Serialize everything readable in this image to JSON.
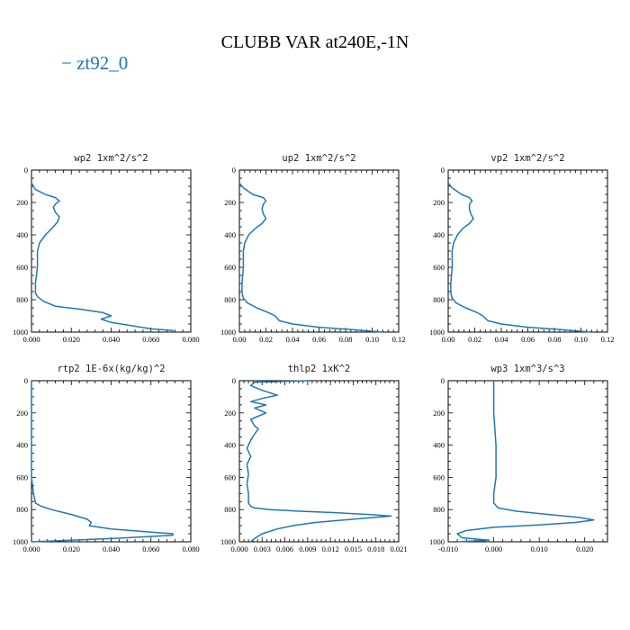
{
  "title": "CLUBB VAR at240E,-1N",
  "legend": {
    "label": "zt92_0",
    "color": "#1f77b4"
  },
  "chart_data": [
    {
      "type": "line",
      "title": "wp2  1xm^2/s^2",
      "xlim": [
        0,
        0.08
      ],
      "xticks": [
        0,
        0.02,
        0.04,
        0.06,
        0.08
      ],
      "xticklabels": [
        "0.000",
        "0.020",
        "0.040",
        "0.060",
        "0.080"
      ],
      "ylim": [
        1000,
        0
      ],
      "yticks": [
        0,
        200,
        400,
        600,
        800,
        1000
      ],
      "yticklabels": [
        "0",
        "200",
        "400",
        "600",
        "800",
        "1000"
      ],
      "x": [
        0.0,
        0.002,
        0.007,
        0.012,
        0.014,
        0.012,
        0.011,
        0.012,
        0.014,
        0.013,
        0.011,
        0.007,
        0.004,
        0.003,
        0.003,
        0.002,
        0.002,
        0.002,
        0.003,
        0.006,
        0.012,
        0.025,
        0.036,
        0.04,
        0.035,
        0.04,
        0.06,
        0.071,
        0.071
      ],
      "y": [
        80,
        120,
        150,
        170,
        190,
        210,
        230,
        260,
        290,
        320,
        350,
        400,
        450,
        500,
        600,
        700,
        740,
        760,
        780,
        810,
        840,
        860,
        880,
        900,
        920,
        940,
        980,
        990,
        1000
      ]
    },
    {
      "type": "line",
      "title": "up2  1xm^2/s^2",
      "xlim": [
        0,
        0.12
      ],
      "xticks": [
        0,
        0.02,
        0.04,
        0.06,
        0.08,
        0.1,
        0.12
      ],
      "xticklabels": [
        "0.00",
        "0.02",
        "0.04",
        "0.06",
        "0.08",
        "0.10",
        "0.12"
      ],
      "ylim": [
        1000,
        0
      ],
      "yticks": [
        0,
        200,
        400,
        600,
        800,
        1000
      ],
      "yticklabels": [
        "0",
        "200",
        "400",
        "600",
        "800",
        "1000"
      ],
      "x": [
        0.0,
        0.003,
        0.01,
        0.018,
        0.02,
        0.018,
        0.017,
        0.018,
        0.02,
        0.017,
        0.012,
        0.007,
        0.004,
        0.003,
        0.003,
        0.002,
        0.002,
        0.003,
        0.006,
        0.013,
        0.022,
        0.027,
        0.03,
        0.04,
        0.06,
        0.085,
        0.1,
        0.108
      ],
      "y": [
        80,
        110,
        150,
        170,
        190,
        210,
        240,
        270,
        300,
        330,
        360,
        400,
        450,
        500,
        600,
        700,
        760,
        790,
        820,
        850,
        880,
        900,
        930,
        950,
        970,
        985,
        995,
        1000
      ]
    },
    {
      "type": "line",
      "title": "vp2  1xm^2/s^2",
      "xlim": [
        0,
        0.12
      ],
      "xticks": [
        0,
        0.02,
        0.04,
        0.06,
        0.08,
        0.1,
        0.12
      ],
      "xticklabels": [
        "0.00",
        "0.02",
        "0.04",
        "0.06",
        "0.08",
        "0.10",
        "0.12"
      ],
      "ylim": [
        1000,
        0
      ],
      "yticks": [
        0,
        200,
        400,
        600,
        800,
        1000
      ],
      "yticklabels": [
        "0",
        "200",
        "400",
        "600",
        "800",
        "1000"
      ],
      "x": [
        0.0,
        0.003,
        0.01,
        0.016,
        0.018,
        0.016,
        0.016,
        0.017,
        0.019,
        0.016,
        0.011,
        0.007,
        0.004,
        0.003,
        0.003,
        0.002,
        0.002,
        0.003,
        0.006,
        0.013,
        0.022,
        0.026,
        0.03,
        0.04,
        0.06,
        0.085,
        0.1,
        0.108
      ],
      "y": [
        80,
        110,
        150,
        170,
        190,
        210,
        240,
        270,
        300,
        330,
        360,
        400,
        450,
        500,
        600,
        700,
        760,
        790,
        820,
        850,
        880,
        900,
        930,
        950,
        970,
        985,
        995,
        1000
      ]
    },
    {
      "type": "line",
      "title": "rtp2  1E-6x(kg/kg)^2",
      "xlim": [
        0,
        0.08
      ],
      "xticks": [
        0,
        0.02,
        0.04,
        0.06,
        0.08
      ],
      "xticklabels": [
        "0.000",
        "0.020",
        "0.040",
        "0.060",
        "0.080"
      ],
      "ylim": [
        1000,
        0
      ],
      "yticks": [
        0,
        200,
        400,
        600,
        800,
        1000
      ],
      "yticklabels": [
        "0",
        "200",
        "400",
        "600",
        "800",
        "1000"
      ],
      "x": [
        0.0,
        0.0,
        0.0,
        0.0,
        0.001,
        0.002,
        0.005,
        0.01,
        0.02,
        0.028,
        0.03,
        0.029,
        0.04,
        0.06,
        0.071,
        0.071,
        0.04,
        0.01,
        0.0
      ],
      "y": [
        0,
        200,
        400,
        600,
        700,
        760,
        780,
        800,
        830,
        860,
        880,
        900,
        920,
        940,
        950,
        960,
        980,
        995,
        1000
      ]
    },
    {
      "type": "line",
      "title": "thlp2  1xK^2",
      "xlim": [
        0,
        0.021
      ],
      "xticks": [
        0,
        0.003,
        0.006,
        0.009,
        0.012,
        0.015,
        0.018,
        0.021
      ],
      "xticklabels": [
        "0.000",
        "0.003",
        "0.006",
        "0.009",
        "0.012",
        "0.015",
        "0.018",
        "0.021"
      ],
      "ylim": [
        1000,
        0
      ],
      "yticks": [
        0,
        200,
        400,
        600,
        800,
        1000
      ],
      "yticklabels": [
        "0",
        "200",
        "400",
        "600",
        "800",
        "1000"
      ],
      "x": [
        0.009,
        0.002,
        0.0015,
        0.003,
        0.005,
        0.003,
        0.0015,
        0.0035,
        0.002,
        0.0035,
        0.0015,
        0.002,
        0.0025,
        0.002,
        0.0015,
        0.001,
        0.0015,
        0.001,
        0.0012,
        0.001,
        0.0012,
        0.0012,
        0.0015,
        0.002,
        0.004,
        0.008,
        0.013,
        0.017,
        0.02,
        0.015,
        0.01,
        0.007,
        0.005,
        0.003,
        0.002,
        0.0015
      ],
      "y": [
        0,
        10,
        30,
        60,
        90,
        110,
        130,
        150,
        170,
        200,
        240,
        280,
        300,
        330,
        370,
        420,
        470,
        520,
        580,
        640,
        700,
        760,
        780,
        790,
        800,
        810,
        820,
        830,
        840,
        860,
        880,
        900,
        920,
        950,
        980,
        1000
      ]
    },
    {
      "type": "line",
      "title": "wp3  1xm^3/s^3",
      "xlim": [
        -0.01,
        0.025
      ],
      "xticks": [
        -0.01,
        0,
        0.01,
        0.02
      ],
      "xticklabels": [
        "-0.010",
        "0.000",
        "0.010",
        "0.020"
      ],
      "ylim": [
        1000,
        0
      ],
      "yticks": [
        0,
        200,
        400,
        600,
        800,
        1000
      ],
      "yticklabels": [
        "0",
        "200",
        "400",
        "600",
        "800",
        "1000"
      ],
      "x": [
        0.0,
        0.0,
        0.0005,
        0.0005,
        0.0005,
        0.0,
        0.0,
        0.001,
        0.005,
        0.012,
        0.019,
        0.022,
        0.018,
        0.01,
        0.0,
        -0.006,
        -0.008,
        -0.007,
        -0.001,
        -0.008
      ],
      "y": [
        0,
        200,
        400,
        500,
        600,
        700,
        760,
        790,
        810,
        830,
        850,
        865,
        880,
        895,
        910,
        930,
        950,
        975,
        990,
        1000
      ]
    }
  ]
}
